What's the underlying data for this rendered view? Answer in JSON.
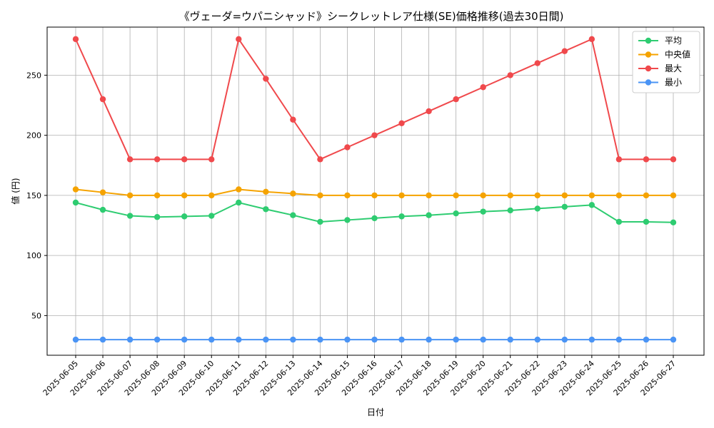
{
  "chart_data": {
    "type": "line",
    "title": "《ヴェーダ=ウパニシャッド》シークレットレア仕様(SE)価格推移(過去30日間)",
    "xlabel": "日付",
    "ylabel": "値 (円)",
    "ylim": [
      17,
      290
    ],
    "yticks": [
      50,
      100,
      150,
      200,
      250
    ],
    "grid": true,
    "legend_position": "top-right",
    "categories": [
      "2025-06-05",
      "2025-06-06",
      "2025-06-07",
      "2025-06-08",
      "2025-06-09",
      "2025-06-10",
      "2025-06-11",
      "2025-06-12",
      "2025-06-13",
      "2025-06-14",
      "2025-06-15",
      "2025-06-16",
      "2025-06-17",
      "2025-06-18",
      "2025-06-19",
      "2025-06-20",
      "2025-06-21",
      "2025-06-22",
      "2025-06-23",
      "2025-06-24",
      "2025-06-25",
      "2025-06-26",
      "2025-06-27"
    ],
    "series": [
      {
        "name": "平均",
        "color": "#2ecc71",
        "values": [
          144,
          138,
          133,
          132,
          132.5,
          133,
          144,
          138.5,
          133.5,
          128,
          129.5,
          131,
          132.5,
          133.5,
          135,
          136.5,
          137.5,
          139,
          140.5,
          142,
          128,
          128,
          127.5
        ]
      },
      {
        "name": "中央値",
        "color": "#f5a300",
        "values": [
          155,
          152.5,
          150,
          150,
          150,
          150,
          155,
          153,
          151.5,
          150,
          150,
          150,
          150,
          150,
          150,
          150,
          150,
          150,
          150,
          150,
          150,
          150,
          150
        ]
      },
      {
        "name": "最大",
        "color": "#f0494c",
        "values": [
          280,
          230,
          180,
          180,
          180,
          180,
          280,
          247,
          213,
          180,
          190,
          200,
          210,
          220,
          230,
          240,
          250,
          260,
          270,
          280,
          180,
          180,
          180
        ]
      },
      {
        "name": "最小",
        "color": "#4a94f5",
        "values": [
          30,
          30,
          30,
          30,
          30,
          30,
          30,
          30,
          30,
          30,
          30,
          30,
          30,
          30,
          30,
          30,
          30,
          30,
          30,
          30,
          30,
          30,
          30
        ]
      }
    ]
  }
}
